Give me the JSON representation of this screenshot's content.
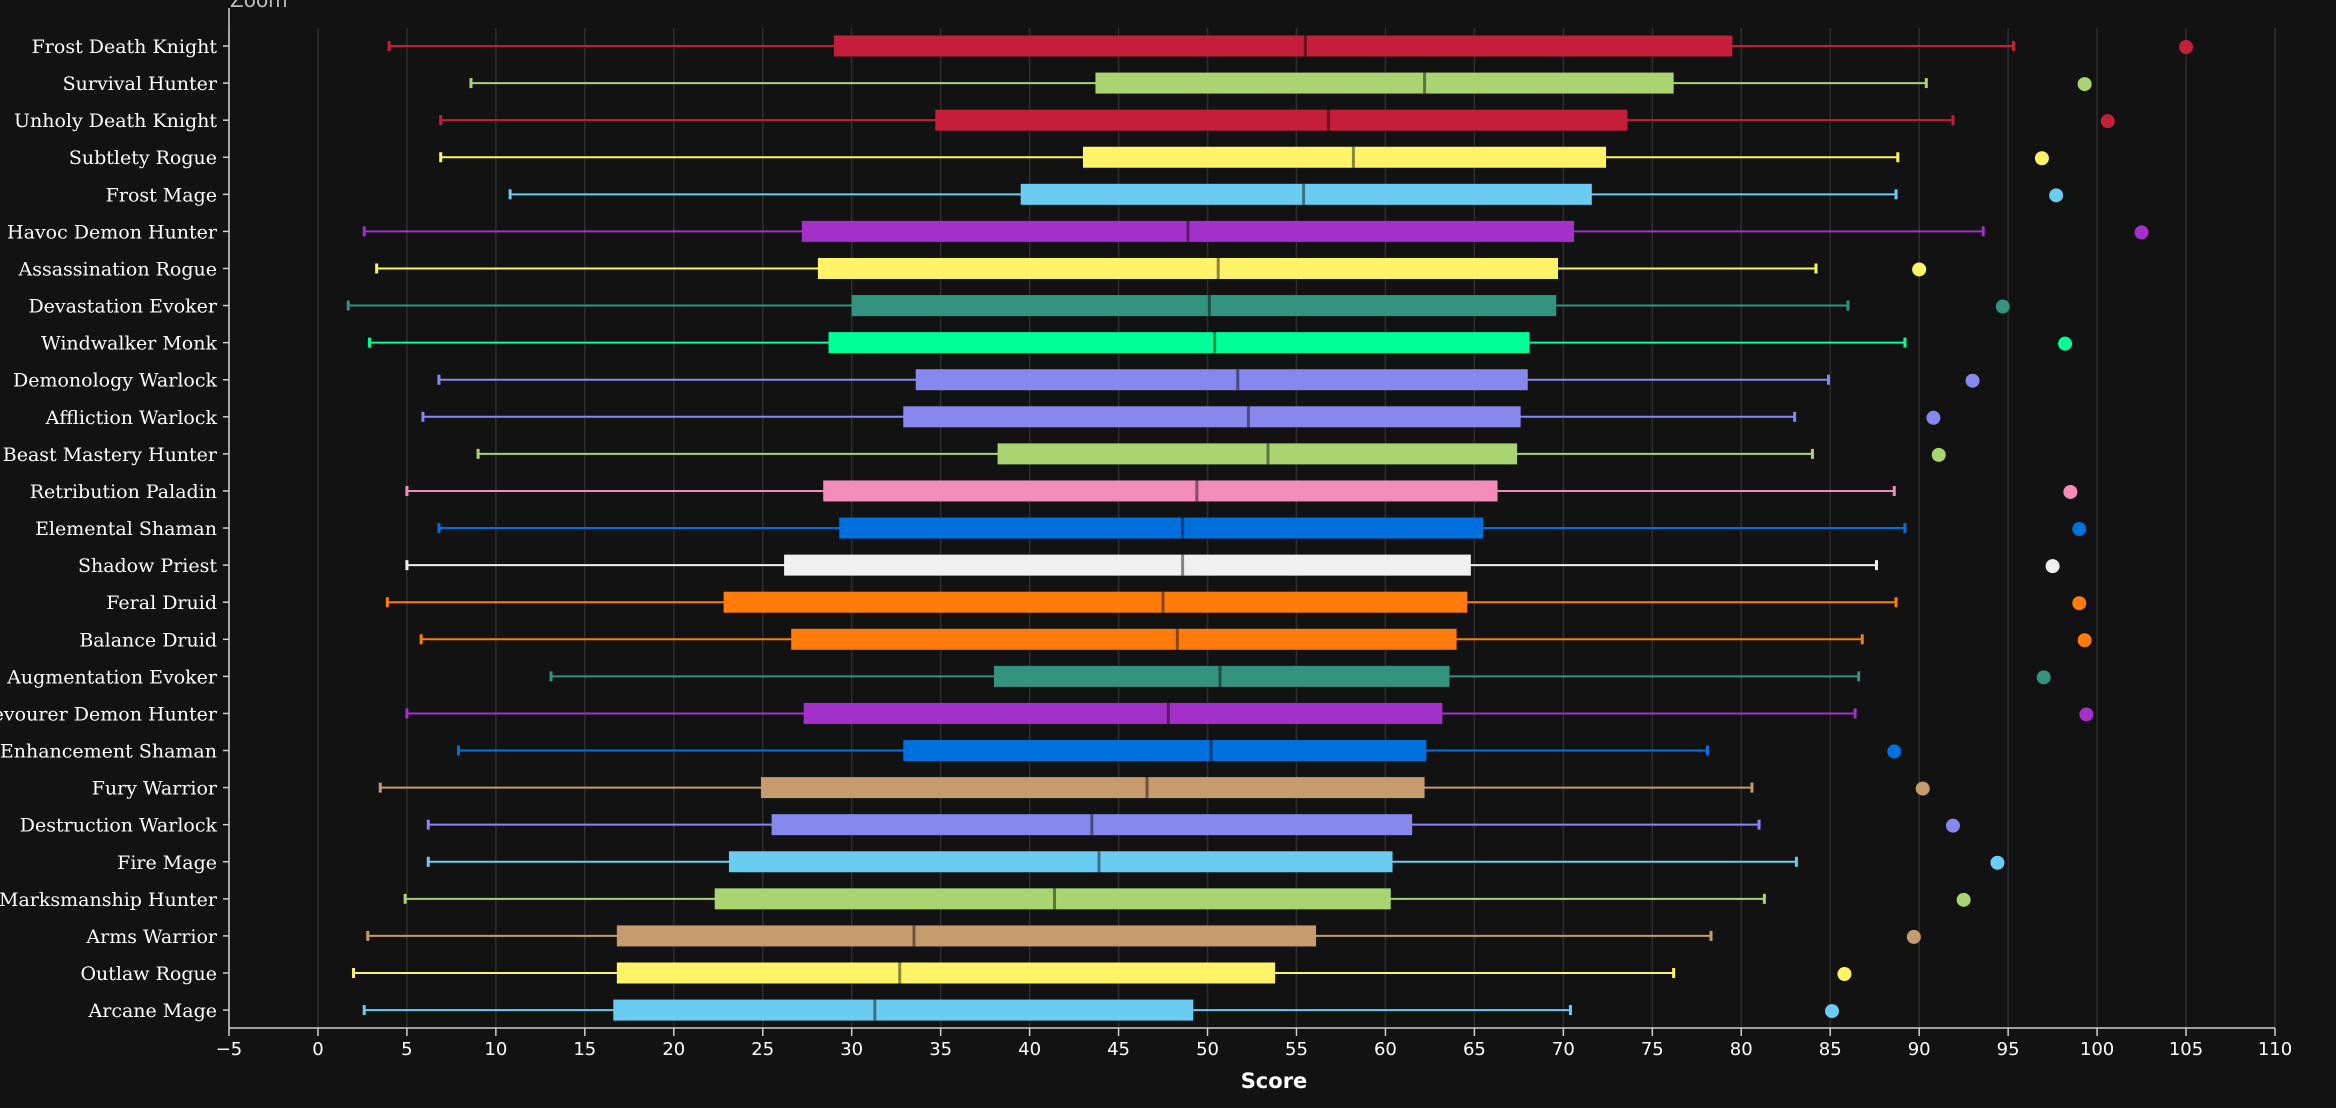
{
  "zoom_label": "Zoom",
  "chart_data": {
    "type": "boxplot",
    "title": "",
    "xlabel": "Score",
    "ylabel": "",
    "xlim": [
      -5,
      110
    ],
    "xticks": [
      -5,
      0,
      5,
      10,
      15,
      20,
      25,
      30,
      35,
      40,
      45,
      50,
      55,
      60,
      65,
      70,
      75,
      80,
      85,
      90,
      95,
      100,
      105,
      110
    ],
    "grid": true,
    "legend": "none",
    "series": [
      {
        "name": "Frost Death Knight",
        "color": "#c41e3a",
        "whisker_low": 4.0,
        "q1": 29.0,
        "median": 55.5,
        "q3": 79.5,
        "whisker_high": 95.3,
        "outlier": 105.0
      },
      {
        "name": "Survival Hunter",
        "color": "#aad372",
        "whisker_low": 8.6,
        "q1": 43.7,
        "median": 62.2,
        "q3": 76.2,
        "whisker_high": 90.4,
        "outlier": 99.3
      },
      {
        "name": "Unholy Death Knight",
        "color": "#c41e3a",
        "whisker_low": 6.9,
        "q1": 34.7,
        "median": 56.8,
        "q3": 73.6,
        "whisker_high": 91.9,
        "outlier": 100.6
      },
      {
        "name": "Subtlety Rogue",
        "color": "#fff468",
        "whisker_low": 6.9,
        "q1": 43.0,
        "median": 58.2,
        "q3": 72.4,
        "whisker_high": 88.8,
        "outlier": 96.9
      },
      {
        "name": "Frost Mage",
        "color": "#69ccf0",
        "whisker_low": 10.8,
        "q1": 39.5,
        "median": 55.4,
        "q3": 71.6,
        "whisker_high": 88.7,
        "outlier": 97.7
      },
      {
        "name": "Havoc Demon Hunter",
        "color": "#a330c9",
        "whisker_low": 2.6,
        "q1": 27.2,
        "median": 48.9,
        "q3": 70.6,
        "whisker_high": 93.6,
        "outlier": 102.5
      },
      {
        "name": "Assassination Rogue",
        "color": "#fff468",
        "whisker_low": 3.3,
        "q1": 28.1,
        "median": 50.6,
        "q3": 69.7,
        "whisker_high": 84.2,
        "outlier": 90.0
      },
      {
        "name": "Devastation Evoker",
        "color": "#33937f",
        "whisker_low": 1.7,
        "q1": 30.0,
        "median": 50.1,
        "q3": 69.6,
        "whisker_high": 86.0,
        "outlier": 94.7
      },
      {
        "name": "Windwalker Monk",
        "color": "#00ff98",
        "whisker_low": 2.9,
        "q1": 28.7,
        "median": 50.4,
        "q3": 68.1,
        "whisker_high": 89.2,
        "outlier": 98.2
      },
      {
        "name": "Demonology Warlock",
        "color": "#8788ee",
        "whisker_low": 6.8,
        "q1": 33.6,
        "median": 51.7,
        "q3": 68.0,
        "whisker_high": 84.9,
        "outlier": 93.0
      },
      {
        "name": "Affliction Warlock",
        "color": "#8788ee",
        "whisker_low": 5.9,
        "q1": 32.9,
        "median": 52.3,
        "q3": 67.6,
        "whisker_high": 83.0,
        "outlier": 90.8
      },
      {
        "name": "Beast Mastery Hunter",
        "color": "#aad372",
        "whisker_low": 9.0,
        "q1": 38.2,
        "median": 53.4,
        "q3": 67.4,
        "whisker_high": 84.0,
        "outlier": 91.1
      },
      {
        "name": "Retribution Paladin",
        "color": "#f48cba",
        "whisker_low": 5.0,
        "q1": 28.4,
        "median": 49.4,
        "q3": 66.3,
        "whisker_high": 88.6,
        "outlier": 98.5
      },
      {
        "name": "Elemental Shaman",
        "color": "#0070dd",
        "whisker_low": 6.8,
        "q1": 29.3,
        "median": 48.6,
        "q3": 65.5,
        "whisker_high": 89.2,
        "outlier": 99.0
      },
      {
        "name": "Shadow Priest",
        "color": "#f0f0f0",
        "whisker_low": 5.0,
        "q1": 26.2,
        "median": 48.6,
        "q3": 64.8,
        "whisker_high": 87.6,
        "outlier": 97.5
      },
      {
        "name": "Feral Druid",
        "color": "#ff7c0a",
        "whisker_low": 3.9,
        "q1": 22.8,
        "median": 47.5,
        "q3": 64.6,
        "whisker_high": 88.7,
        "outlier": 99.0
      },
      {
        "name": "Balance Druid",
        "color": "#ff7c0a",
        "whisker_low": 5.8,
        "q1": 26.6,
        "median": 48.3,
        "q3": 64.0,
        "whisker_high": 86.8,
        "outlier": 99.3
      },
      {
        "name": "Augmentation Evoker",
        "color": "#33937f",
        "whisker_low": 13.1,
        "q1": 38.0,
        "median": 50.7,
        "q3": 63.6,
        "whisker_high": 86.6,
        "outlier": 97.0
      },
      {
        "name": "Devourer Demon Hunter",
        "color": "#a330c9",
        "whisker_low": 5.0,
        "q1": 27.3,
        "median": 47.8,
        "q3": 63.2,
        "whisker_high": 86.4,
        "outlier": 99.4
      },
      {
        "name": "Enhancement Shaman",
        "color": "#0070dd",
        "whisker_low": 7.9,
        "q1": 32.9,
        "median": 50.2,
        "q3": 62.3,
        "whisker_high": 78.1,
        "outlier": 88.6
      },
      {
        "name": "Fury Warrior",
        "color": "#c69b6d",
        "whisker_low": 3.5,
        "q1": 24.9,
        "median": 46.6,
        "q3": 62.2,
        "whisker_high": 80.6,
        "outlier": 90.2
      },
      {
        "name": "Destruction Warlock",
        "color": "#8788ee",
        "whisker_low": 6.2,
        "q1": 25.5,
        "median": 43.5,
        "q3": 61.5,
        "whisker_high": 81.0,
        "outlier": 91.9
      },
      {
        "name": "Fire Mage",
        "color": "#69ccf0",
        "whisker_low": 6.2,
        "q1": 23.1,
        "median": 43.9,
        "q3": 60.4,
        "whisker_high": 83.1,
        "outlier": 94.4
      },
      {
        "name": "Marksmanship Hunter",
        "color": "#aad372",
        "whisker_low": 4.9,
        "q1": 22.3,
        "median": 41.4,
        "q3": 60.3,
        "whisker_high": 81.3,
        "outlier": 92.5
      },
      {
        "name": "Arms Warrior",
        "color": "#c69b6d",
        "whisker_low": 2.8,
        "q1": 16.8,
        "median": 33.5,
        "q3": 56.1,
        "whisker_high": 78.3,
        "outlier": 89.7
      },
      {
        "name": "Outlaw Rogue",
        "color": "#fff468",
        "whisker_low": 2.0,
        "q1": 16.8,
        "median": 32.7,
        "q3": 53.8,
        "whisker_high": 76.2,
        "outlier": 85.8
      },
      {
        "name": "Arcane Mage",
        "color": "#69ccf0",
        "whisker_low": 2.6,
        "q1": 16.6,
        "median": 31.3,
        "q3": 49.2,
        "whisker_high": 70.4,
        "outlier": 85.1
      }
    ]
  }
}
